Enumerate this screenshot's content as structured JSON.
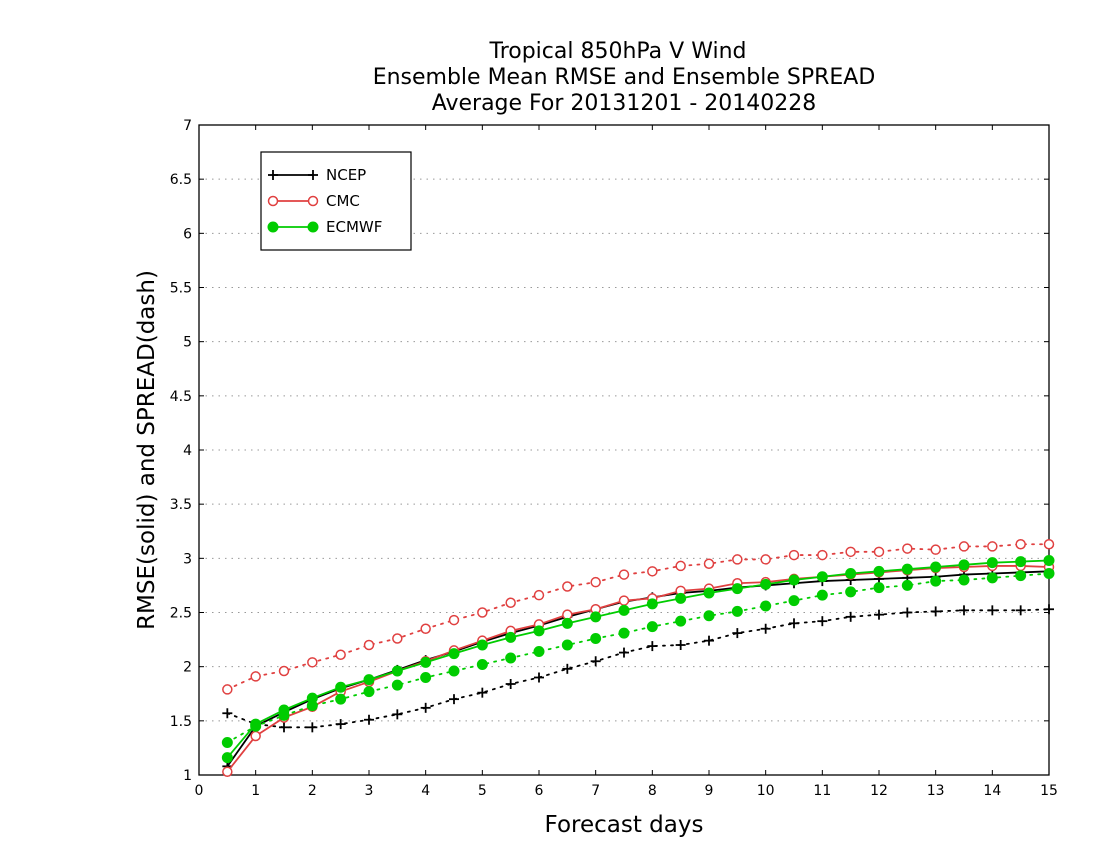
{
  "chart_data": {
    "type": "line",
    "title_lines": [
      "Tropical 850hPa V Wind",
      "Ensemble Mean RMSE and Ensemble SPREAD",
      "Average For 20131201 - 20140228"
    ],
    "xlabel": "Forecast days",
    "ylabel": "RMSE(solid) and SPREAD(dash)",
    "xlim": [
      0,
      15
    ],
    "ylim": [
      1,
      7
    ],
    "x_ticks": [
      "0",
      "1",
      "2",
      "3",
      "4",
      "5",
      "6",
      "7",
      "8",
      "9",
      "10",
      "11",
      "12",
      "13",
      "14",
      "15"
    ],
    "y_ticks": [
      "1",
      "1.5",
      "2",
      "2.5",
      "3",
      "3.5",
      "4",
      "4.5",
      "5",
      "5.5",
      "6",
      "6.5",
      "7"
    ],
    "grid": "horizontal dotted",
    "legend_position": "top-left",
    "x": [
      0.5,
      1,
      1.5,
      2,
      2.5,
      3,
      3.5,
      4,
      4.5,
      5,
      5.5,
      6,
      6.5,
      7,
      7.5,
      8,
      8.5,
      9,
      9.5,
      10,
      10.5,
      11,
      11.5,
      12,
      12.5,
      13,
      13.5,
      14,
      14.5,
      15
    ],
    "series": [
      {
        "name": "NCEP",
        "color": "#000000",
        "marker": "plus",
        "rmse": [
          1.08,
          1.45,
          1.58,
          1.7,
          1.8,
          1.88,
          1.97,
          2.06,
          2.14,
          2.23,
          2.31,
          2.38,
          2.46,
          2.53,
          2.6,
          2.64,
          2.68,
          2.7,
          2.73,
          2.75,
          2.77,
          2.79,
          2.8,
          2.81,
          2.82,
          2.83,
          2.85,
          2.86,
          2.87,
          2.88
        ],
        "spread": [
          1.57,
          1.47,
          1.44,
          1.44,
          1.47,
          1.51,
          1.56,
          1.62,
          1.7,
          1.76,
          1.84,
          1.9,
          1.98,
          2.05,
          2.13,
          2.19,
          2.2,
          2.24,
          2.31,
          2.35,
          2.4,
          2.42,
          2.46,
          2.48,
          2.5,
          2.51,
          2.52,
          2.52,
          2.52,
          2.53
        ]
      },
      {
        "name": "CMC",
        "color": "#e04040",
        "marker": "open-circle",
        "rmse": [
          1.03,
          1.36,
          1.53,
          1.63,
          1.77,
          1.86,
          1.96,
          2.05,
          2.15,
          2.24,
          2.33,
          2.39,
          2.48,
          2.53,
          2.61,
          2.63,
          2.7,
          2.72,
          2.77,
          2.78,
          2.81,
          2.83,
          2.85,
          2.87,
          2.89,
          2.91,
          2.92,
          2.93,
          2.93,
          2.92
        ],
        "spread": [
          1.79,
          1.91,
          1.96,
          2.04,
          2.11,
          2.2,
          2.26,
          2.35,
          2.43,
          2.5,
          2.59,
          2.66,
          2.74,
          2.78,
          2.85,
          2.88,
          2.93,
          2.95,
          2.99,
          2.99,
          3.03,
          3.03,
          3.06,
          3.06,
          3.09,
          3.08,
          3.11,
          3.11,
          3.13,
          3.13
        ]
      },
      {
        "name": "ECMWF",
        "color": "#00cc00",
        "marker": "filled-circle",
        "rmse": [
          1.16,
          1.47,
          1.6,
          1.71,
          1.81,
          1.88,
          1.96,
          2.04,
          2.12,
          2.2,
          2.27,
          2.33,
          2.4,
          2.46,
          2.52,
          2.58,
          2.63,
          2.68,
          2.72,
          2.76,
          2.8,
          2.83,
          2.86,
          2.88,
          2.9,
          2.92,
          2.94,
          2.96,
          2.97,
          2.98
        ],
        "spread": [
          1.3,
          1.45,
          1.55,
          1.64,
          1.7,
          1.77,
          1.83,
          1.9,
          1.96,
          2.02,
          2.08,
          2.14,
          2.2,
          2.26,
          2.31,
          2.37,
          2.42,
          2.47,
          2.51,
          2.56,
          2.61,
          2.66,
          2.69,
          2.73,
          2.75,
          2.79,
          2.8,
          2.82,
          2.84,
          2.86
        ]
      }
    ]
  }
}
